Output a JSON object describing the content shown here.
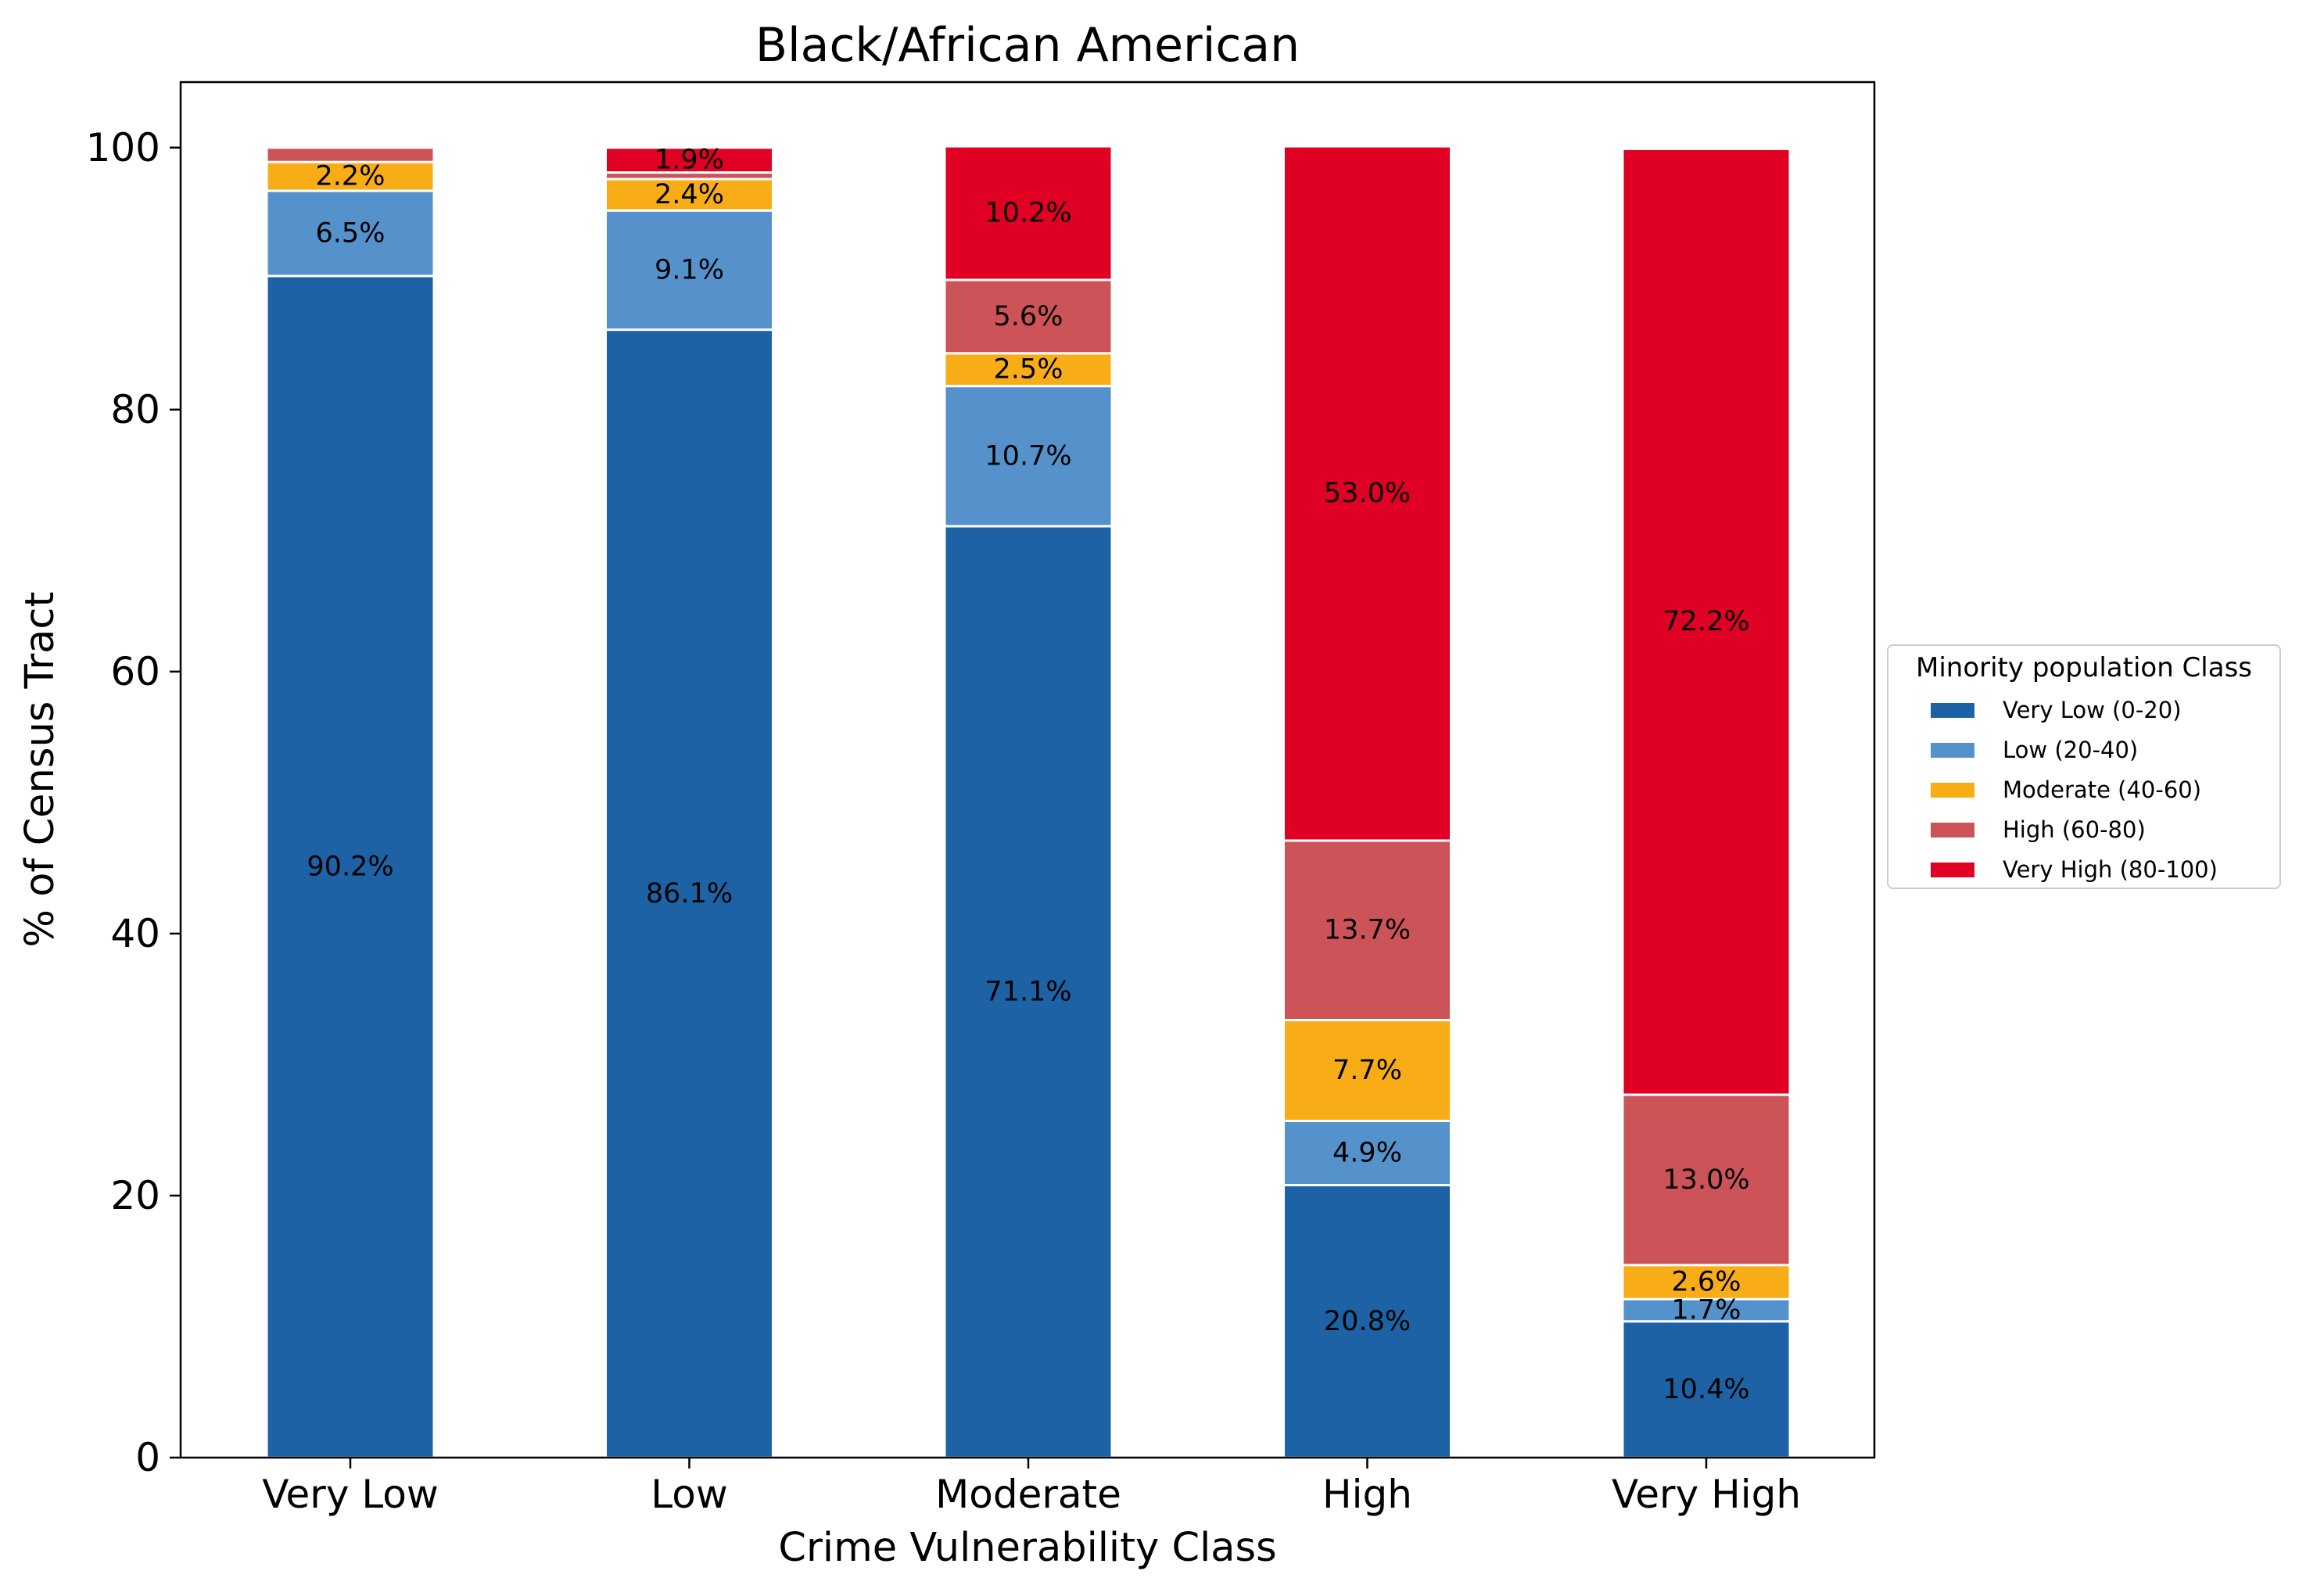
{
  "chart_data": {
    "type": "bar",
    "stacked": true,
    "title": "Black/African American",
    "xlabel": "Crime Vulnerability Class",
    "ylabel": "% of Census Tract",
    "categories": [
      "Very Low",
      "Low",
      "Moderate",
      "High",
      "Very High"
    ],
    "ylim": [
      0,
      105
    ],
    "yticks": [
      0,
      20,
      40,
      60,
      80,
      100
    ],
    "grid": false,
    "legend": {
      "title": "Minority population Class",
      "placement": "center-right-outside"
    },
    "series": [
      {
        "name": "Very Low (0-20)",
        "color": "#1c62a4",
        "values": [
          90.2,
          86.1,
          71.1,
          20.8,
          10.4
        ],
        "labels": [
          "90.2%",
          "86.1%",
          "71.1%",
          "20.8%",
          "10.4%"
        ]
      },
      {
        "name": "Low (20-40)",
        "color": "#5592cc",
        "values": [
          6.5,
          9.1,
          10.7,
          4.9,
          1.7
        ],
        "labels": [
          "6.5%",
          "9.1%",
          "10.7%",
          "4.9%",
          "1.7%"
        ]
      },
      {
        "name": "Moderate (40-60)",
        "color": "#f8ad16",
        "values": [
          2.2,
          2.4,
          2.5,
          7.7,
          2.6
        ],
        "labels": [
          "2.2%",
          "2.4%",
          "2.5%",
          "7.7%",
          "2.6%"
        ]
      },
      {
        "name": "High (60-80)",
        "color": "#cc5357",
        "values": [
          1.1,
          0.5,
          5.6,
          13.7,
          13.0
        ],
        "labels": [
          "",
          "",
          "5.6%",
          "13.7%",
          "13.0%"
        ]
      },
      {
        "name": "Very High (80-100)",
        "color": "#df0023",
        "values": [
          0.0,
          1.9,
          10.2,
          53.0,
          72.2
        ],
        "labels": [
          "",
          "1.9%",
          "10.2%",
          "53.0%",
          "72.2%"
        ]
      }
    ]
  }
}
